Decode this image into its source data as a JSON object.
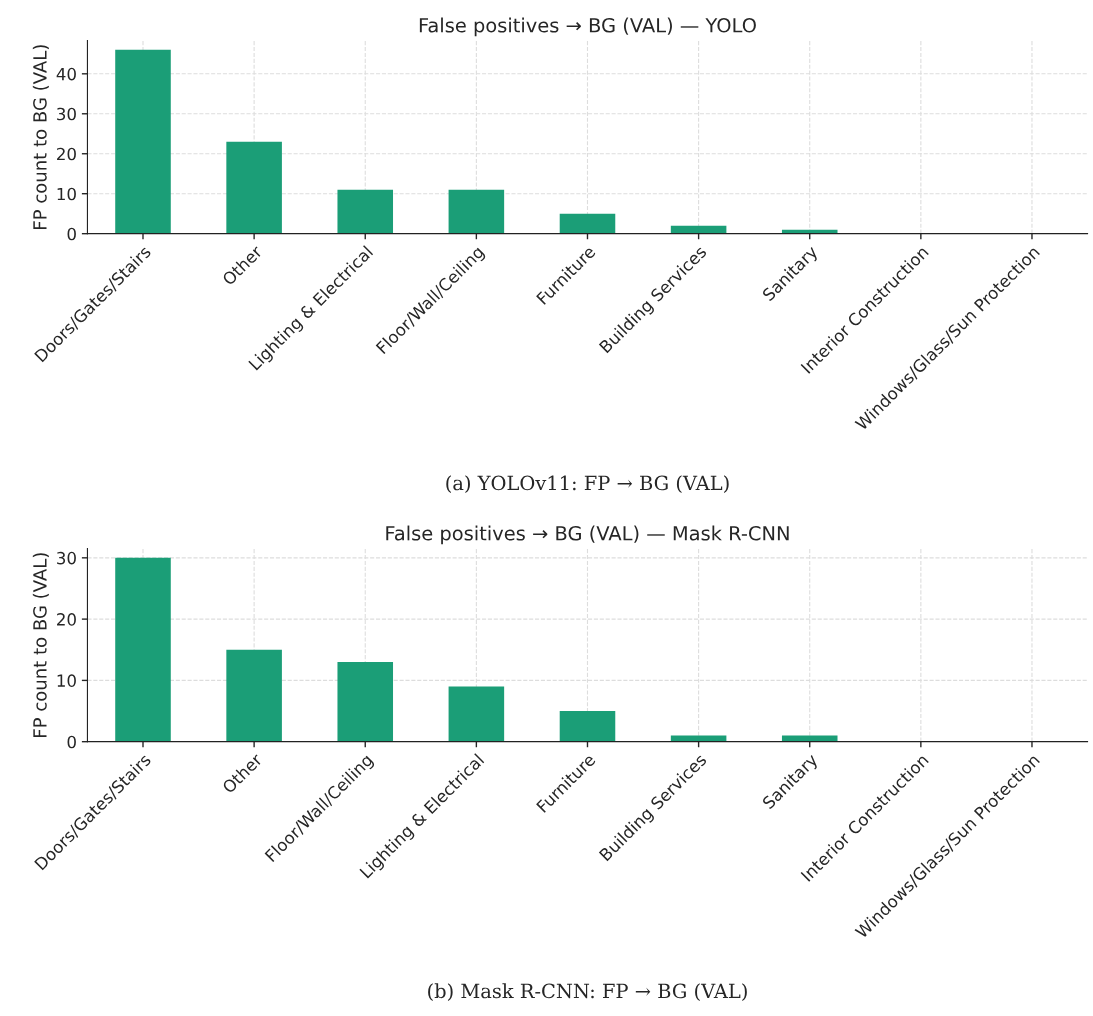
{
  "chart_data": [
    {
      "type": "bar",
      "title": "False positives → BG (VAL) — YOLO",
      "ylabel": "FP count to BG (VAL)",
      "categories": [
        "Doors/Gates/Stairs",
        "Other",
        "Lighting & Electrical",
        "Floor/Wall/Ceiling",
        "Furniture",
        "Building Services",
        "Sanitary",
        "Interior Construction",
        "Windows/Glass/Sun Protection"
      ],
      "values": [
        46,
        23,
        11,
        11,
        5,
        2,
        1,
        0,
        0
      ],
      "color": "#1b9e77",
      "ylim": [
        0,
        48.3
      ],
      "yticks": [
        0,
        10,
        20,
        30,
        40
      ],
      "grid": true,
      "annotations": [
        "(a) YOLOv11: FP → BG (VAL)"
      ]
    },
    {
      "type": "bar",
      "title": "False positives → BG (VAL) — Mask R-CNN",
      "ylabel": "FP count to BG (VAL)",
      "categories": [
        "Doors/Gates/Stairs",
        "Other",
        "Floor/Wall/Ceiling",
        "Lighting & Electrical",
        "Furniture",
        "Building Services",
        "Sanitary",
        "Interior Construction",
        "Windows/Glass/Sun Protection"
      ],
      "values": [
        30,
        15,
        13,
        9,
        5,
        1,
        1,
        0,
        0
      ],
      "color": "#1b9e77",
      "ylim": [
        0,
        31.5
      ],
      "yticks": [
        0,
        10,
        20,
        30
      ],
      "grid": true,
      "annotations": [
        "(b) Mask R-CNN: FP → BG (VAL)"
      ]
    }
  ]
}
